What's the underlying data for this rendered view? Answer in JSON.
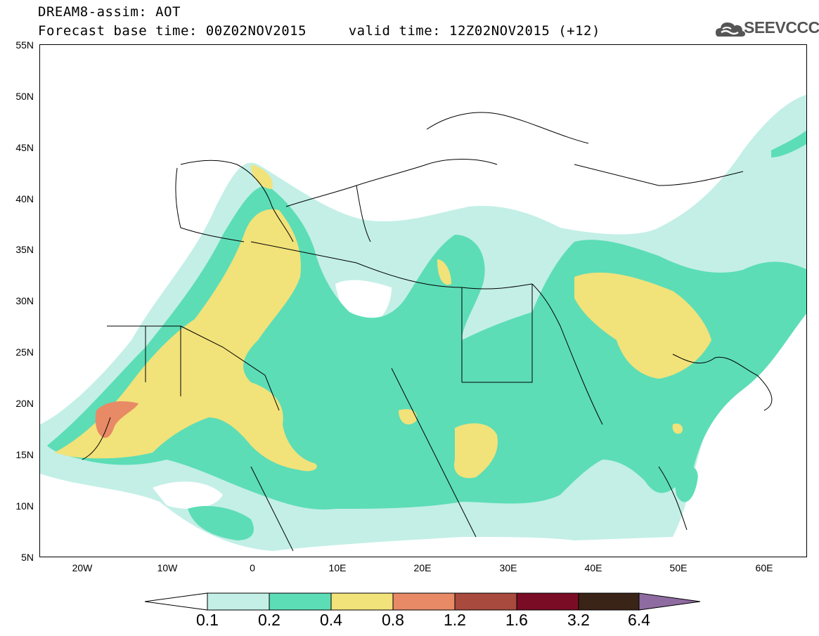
{
  "header": {
    "title_line1": "DREAM8-assim: AOT",
    "title_line2": "Forecast base time: 00Z02NOV2015     valid time: 12Z02NOV2015 (+12)"
  },
  "logo": {
    "text": "SEEVCCC",
    "icon": "cloud-icon"
  },
  "map": {
    "lat_labels": [
      "55N",
      "50N",
      "45N",
      "40N",
      "35N",
      "30N",
      "25N",
      "20N",
      "15N",
      "10N",
      "5N"
    ],
    "lon_labels": [
      "20W",
      "10W",
      "0",
      "10E",
      "20E",
      "30E",
      "40E",
      "50E",
      "60E"
    ],
    "field": "AOT",
    "lat_range": [
      5,
      55
    ],
    "lon_range": [
      -25,
      65
    ]
  },
  "legend": {
    "thresholds": [
      "0.1",
      "0.2",
      "0.4",
      "0.8",
      "1.2",
      "1.6",
      "3.2",
      "6.4"
    ],
    "colors": [
      "#ffffff",
      "#c3efe6",
      "#5cddb6",
      "#f2e27a",
      "#e88a66",
      "#a84a3e",
      "#7a0d25",
      "#3a2417",
      "#8e6ba0"
    ]
  }
}
